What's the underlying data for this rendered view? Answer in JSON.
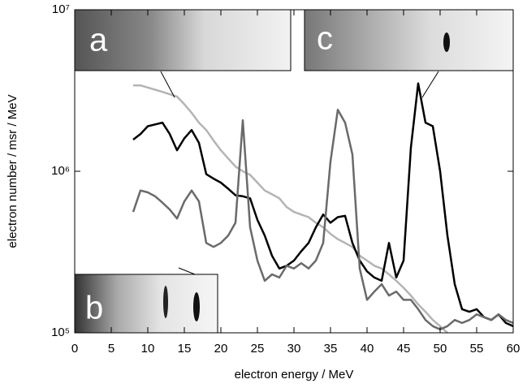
{
  "chart_data": {
    "type": "line",
    "x_label": "electron energy / MeV",
    "y_label": "electron number / msr / MeV",
    "annotations": [
      "a",
      "b",
      "c"
    ],
    "log_y": true,
    "x": [
      8,
      9,
      10,
      11,
      12,
      13,
      14,
      15,
      16,
      17,
      18,
      19,
      20,
      21,
      22,
      23,
      24,
      25,
      26,
      27,
      28,
      29,
      30,
      31,
      32,
      33,
      34,
      35,
      36,
      37,
      38,
      39,
      40,
      41,
      42,
      43,
      44,
      45,
      46,
      47,
      48,
      49,
      50,
      51,
      52,
      53,
      54,
      55,
      56,
      57,
      58,
      59,
      60
    ],
    "series": [
      {
        "name": "a",
        "color": "#b4b4b4",
        "values": [
          3400000,
          3400000,
          3300000,
          3200000,
          3100000,
          3000000,
          2900000,
          2600000,
          2300000,
          2000000,
          1800000,
          1550000,
          1350000,
          1200000,
          1070000,
          1000000,
          950000,
          850000,
          760000,
          720000,
          680000,
          600000,
          560000,
          540000,
          520000,
          480000,
          450000,
          410000,
          380000,
          360000,
          340000,
          300000,
          280000,
          260000,
          250000,
          230000,
          210000,
          190000,
          170000,
          150000,
          135000,
          120000,
          110000,
          100000,
          null,
          null,
          null,
          null,
          null,
          null,
          null,
          null,
          null
        ]
      },
      {
        "name": "c",
        "color": "#000000",
        "values": [
          1570000,
          1700000,
          1900000,
          1950000,
          2000000,
          1700000,
          1350000,
          1600000,
          1800000,
          1500000,
          960000,
          900000,
          850000,
          780000,
          710000,
          700000,
          680000,
          500000,
          400000,
          300000,
          250000,
          260000,
          280000,
          320000,
          360000,
          450000,
          540000,
          480000,
          520000,
          530000,
          360000,
          280000,
          240000,
          220000,
          210000,
          360000,
          220000,
          280000,
          1400000,
          3500000,
          2000000,
          1900000,
          1000000,
          400000,
          200000,
          140000,
          135000,
          140000,
          125000,
          120000,
          130000,
          115000,
          110000
        ]
      },
      {
        "name": "b",
        "color": "#6a6a6a",
        "values": [
          560000,
          760000,
          740000,
          700000,
          640000,
          580000,
          510000,
          650000,
          760000,
          650000,
          360000,
          340000,
          360000,
          400000,
          480000,
          2070000,
          450000,
          280000,
          210000,
          230000,
          220000,
          260000,
          250000,
          270000,
          250000,
          280000,
          360000,
          1150000,
          2400000,
          2000000,
          1270000,
          250000,
          160000,
          180000,
          200000,
          170000,
          180000,
          160000,
          160000,
          140000,
          120000,
          110000,
          105000,
          110000,
          120000,
          115000,
          120000,
          130000,
          125000,
          120000,
          130000,
          120000,
          115000
        ]
      }
    ],
    "xlim": [
      0,
      60
    ],
    "xticks": [
      0,
      5,
      10,
      15,
      20,
      25,
      30,
      35,
      40,
      45,
      50,
      55,
      60
    ],
    "ylim": [
      100000,
      10000000
    ],
    "yticks": [
      {
        "value": 100000,
        "label": "10⁵"
      },
      {
        "value": 1000000,
        "label": "10⁶"
      },
      {
        "value": 10000000,
        "label": "10⁷"
      }
    ]
  }
}
